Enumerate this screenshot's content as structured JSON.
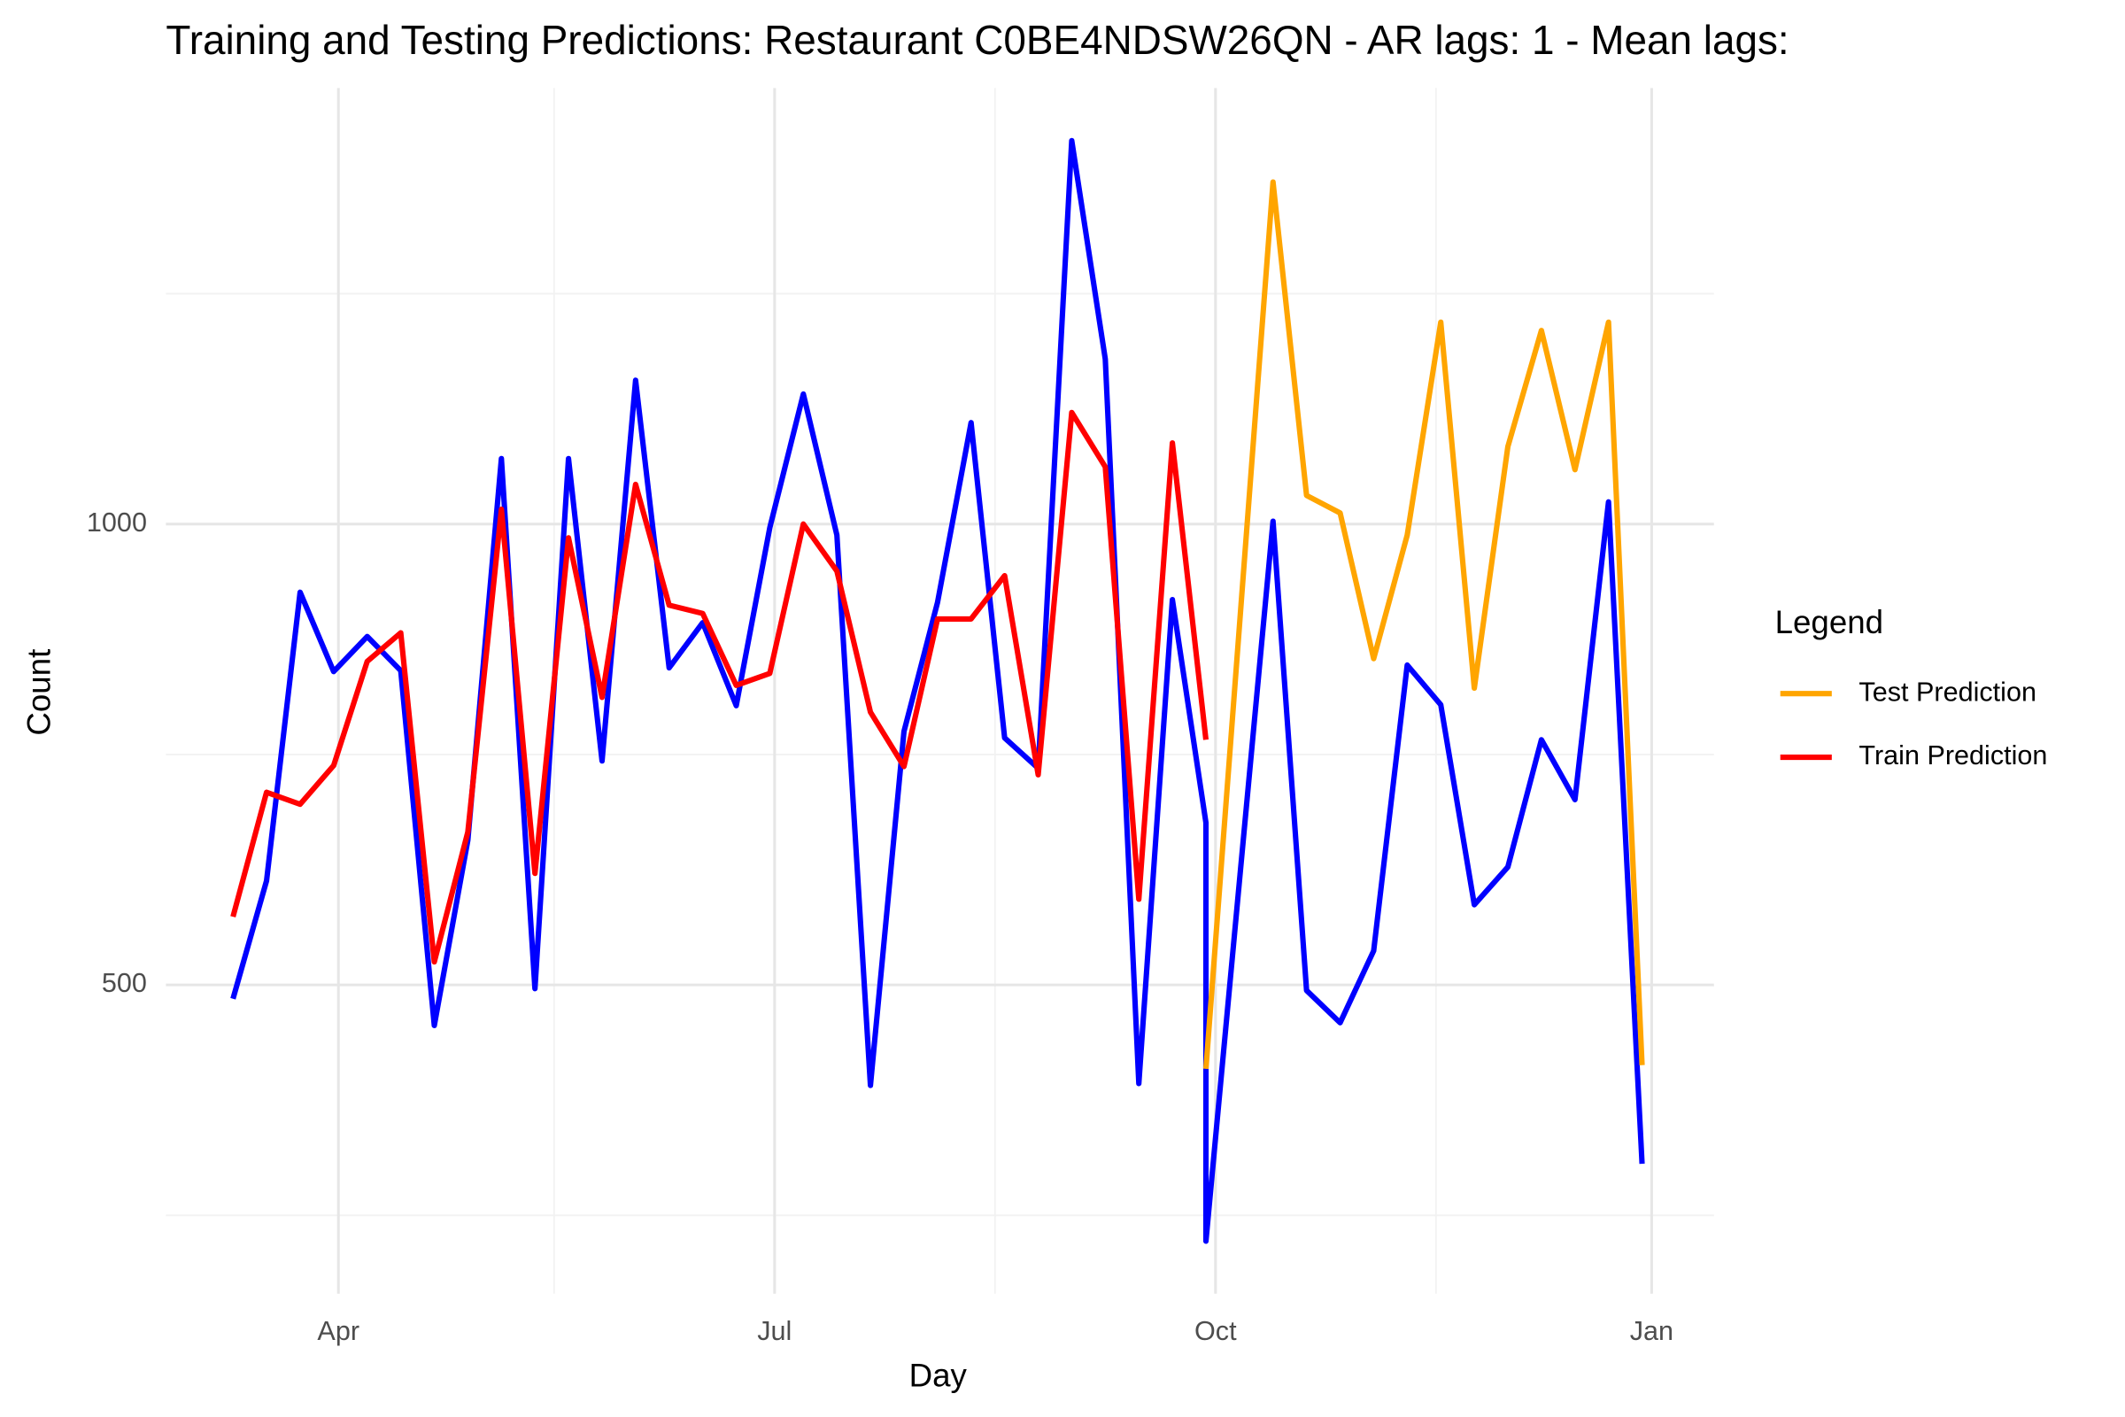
{
  "chart_data": {
    "type": "line",
    "title": "Training and Testing Predictions: Restaurant C0BE4NDSW26QN - AR lags: 1 - Mean lags:",
    "x_label": "Day",
    "y_label": "Count",
    "legend_title": "Legend",
    "legend_position": "right",
    "grid": true,
    "xlim": [
      55,
      378
    ],
    "ylim": [
      165,
      1473
    ],
    "xticks": [
      {
        "value": 91,
        "label": "Apr"
      },
      {
        "value": 182,
        "label": "Jul"
      },
      {
        "value": 274,
        "label": "Oct"
      },
      {
        "value": 365,
        "label": "Jan"
      }
    ],
    "x_minor": [
      136,
      228,
      320
    ],
    "yticks": [
      500,
      1000
    ],
    "y_minor": [
      250,
      750,
      1250
    ],
    "series": [
      {
        "color": "#0000ff",
        "x": [
          69,
          76,
          83,
          90,
          97,
          104,
          111,
          118,
          125,
          132,
          139,
          146,
          153,
          160,
          167,
          174,
          181,
          188,
          195,
          202,
          209,
          216,
          223,
          230,
          237,
          244,
          251,
          258,
          265,
          272,
          272,
          279,
          286,
          293,
          300,
          307,
          314,
          321,
          328,
          335,
          342,
          349,
          356,
          363
        ],
        "values": [
          485,
          613,
          926,
          840,
          878,
          841,
          456,
          657,
          1071,
          496,
          1071,
          743,
          1156,
          844,
          893,
          803,
          996,
          1141,
          988,
          391,
          775,
          915,
          1110,
          768,
          735,
          1416,
          1179,
          393,
          918,
          676,
          222,
          613,
          1003,
          494,
          459,
          537,
          847,
          804,
          587,
          628,
          766,
          701,
          1024,
          306
        ]
      },
      {
        "name": "Test Prediction",
        "color": "#ffa500",
        "x": [
          272,
          279,
          286,
          293,
          300,
          307,
          314,
          321,
          328,
          335,
          342,
          349,
          356,
          363
        ],
        "values": [
          409,
          890,
          1371,
          1031,
          1012,
          854,
          988,
          1219,
          822,
          1084,
          1210,
          1059,
          1219,
          413
        ]
      },
      {
        "name": "Train Prediction",
        "color": "#ff0000",
        "x": [
          69,
          76,
          83,
          90,
          97,
          104,
          111,
          118,
          125,
          132,
          139,
          146,
          153,
          160,
          167,
          174,
          181,
          188,
          195,
          202,
          209,
          216,
          223,
          230,
          237,
          244,
          251,
          258,
          265,
          272
        ],
        "values": [
          574,
          709,
          696,
          738,
          851,
          882,
          525,
          666,
          1016,
          621,
          985,
          812,
          1043,
          912,
          903,
          825,
          838,
          1000,
          949,
          796,
          737,
          897,
          897,
          944,
          728,
          1121,
          1062,
          593,
          1088,
          766
        ]
      }
    ]
  }
}
